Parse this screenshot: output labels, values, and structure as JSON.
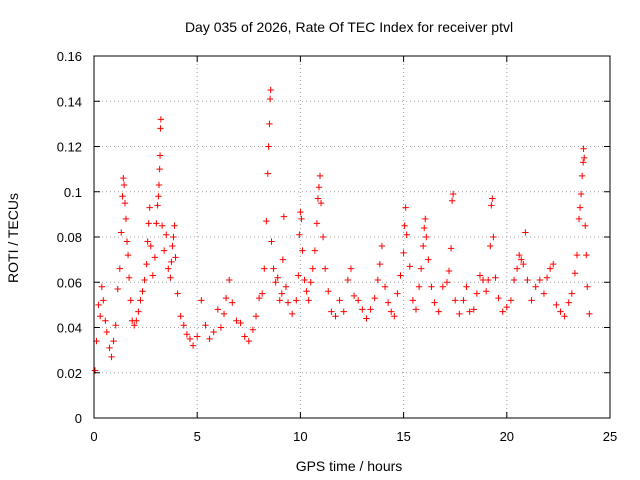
{
  "chart_data": {
    "type": "scatter",
    "title": "Day 035 of 2026, Rate Of TEC Index for receiver ptvl",
    "xlabel": "GPS time / hours",
    "ylabel": "ROTI / TECUs",
    "xlim": [
      0,
      25
    ],
    "ylim": [
      0,
      0.16
    ],
    "xticks": [
      "0",
      "5",
      "10",
      "15",
      "20",
      "25"
    ],
    "yticks": [
      "0",
      "0.02",
      "0.04",
      "0.06",
      "0.08",
      "0.1",
      "0.12",
      "0.14",
      "0.16"
    ],
    "grid": true,
    "marker": "+",
    "color": "#ff0000",
    "series": [
      {
        "name": "ROTI",
        "points": [
          [
            0.05,
            0.021
          ],
          [
            0.12,
            0.034
          ],
          [
            0.22,
            0.05
          ],
          [
            0.3,
            0.045
          ],
          [
            0.38,
            0.058
          ],
          [
            0.45,
            0.052
          ],
          [
            0.55,
            0.043
          ],
          [
            0.62,
            0.038
          ],
          [
            0.75,
            0.031
          ],
          [
            0.85,
            0.027
          ],
          [
            0.95,
            0.034
          ],
          [
            1.05,
            0.041
          ],
          [
            1.15,
            0.057
          ],
          [
            1.25,
            0.066
          ],
          [
            1.32,
            0.082
          ],
          [
            1.38,
            0.098
          ],
          [
            1.42,
            0.106
          ],
          [
            1.46,
            0.103
          ],
          [
            1.5,
            0.095
          ],
          [
            1.55,
            0.088
          ],
          [
            1.6,
            0.078
          ],
          [
            1.65,
            0.072
          ],
          [
            1.7,
            0.062
          ],
          [
            1.78,
            0.052
          ],
          [
            1.85,
            0.043
          ],
          [
            1.95,
            0.041
          ],
          [
            2.05,
            0.043
          ],
          [
            2.15,
            0.047
          ],
          [
            2.25,
            0.052
          ],
          [
            2.35,
            0.056
          ],
          [
            2.45,
            0.061
          ],
          [
            2.55,
            0.068
          ],
          [
            2.6,
            0.078
          ],
          [
            2.65,
            0.086
          ],
          [
            2.7,
            0.093
          ],
          [
            2.75,
            0.076
          ],
          [
            2.85,
            0.063
          ],
          [
            2.95,
            0.071
          ],
          [
            3.02,
            0.086
          ],
          [
            3.08,
            0.094
          ],
          [
            3.12,
            0.098
          ],
          [
            3.15,
            0.103
          ],
          [
            3.18,
            0.11
          ],
          [
            3.2,
            0.116
          ],
          [
            3.22,
            0.128
          ],
          [
            3.24,
            0.132
          ],
          [
            3.3,
            0.085
          ],
          [
            3.4,
            0.074
          ],
          [
            3.5,
            0.081
          ],
          [
            3.6,
            0.066
          ],
          [
            3.7,
            0.062
          ],
          [
            3.75,
            0.069
          ],
          [
            3.8,
            0.076
          ],
          [
            3.85,
            0.08
          ],
          [
            3.9,
            0.085
          ],
          [
            3.95,
            0.071
          ],
          [
            4.05,
            0.055
          ],
          [
            4.2,
            0.045
          ],
          [
            4.35,
            0.041
          ],
          [
            4.5,
            0.037
          ],
          [
            4.65,
            0.035
          ],
          [
            4.8,
            0.032
          ],
          [
            5.0,
            0.036
          ],
          [
            5.2,
            0.052
          ],
          [
            5.4,
            0.041
          ],
          [
            5.6,
            0.035
          ],
          [
            5.8,
            0.038
          ],
          [
            6.0,
            0.048
          ],
          [
            6.15,
            0.04
          ],
          [
            6.3,
            0.046
          ],
          [
            6.4,
            0.053
          ],
          [
            6.55,
            0.061
          ],
          [
            6.7,
            0.051
          ],
          [
            6.9,
            0.043
          ],
          [
            7.1,
            0.042
          ],
          [
            7.3,
            0.036
          ],
          [
            7.5,
            0.034
          ],
          [
            7.7,
            0.039
          ],
          [
            7.85,
            0.045
          ],
          [
            8.0,
            0.053
          ],
          [
            8.15,
            0.055
          ],
          [
            8.25,
            0.066
          ],
          [
            8.35,
            0.087
          ],
          [
            8.42,
            0.108
          ],
          [
            8.46,
            0.12
          ],
          [
            8.5,
            0.13
          ],
          [
            8.53,
            0.141
          ],
          [
            8.56,
            0.145
          ],
          [
            8.6,
            0.078
          ],
          [
            8.7,
            0.066
          ],
          [
            8.8,
            0.06
          ],
          [
            8.9,
            0.062
          ],
          [
            9.0,
            0.052
          ],
          [
            9.1,
            0.055
          ],
          [
            9.15,
            0.07
          ],
          [
            9.2,
            0.089
          ],
          [
            9.3,
            0.058
          ],
          [
            9.4,
            0.051
          ],
          [
            9.6,
            0.046
          ],
          [
            9.8,
            0.052
          ],
          [
            9.9,
            0.063
          ],
          [
            9.95,
            0.081
          ],
          [
            10.0,
            0.091
          ],
          [
            10.05,
            0.088
          ],
          [
            10.1,
            0.074
          ],
          [
            10.2,
            0.061
          ],
          [
            10.3,
            0.056
          ],
          [
            10.4,
            0.052
          ],
          [
            10.5,
            0.06
          ],
          [
            10.6,
            0.066
          ],
          [
            10.7,
            0.074
          ],
          [
            10.8,
            0.086
          ],
          [
            10.85,
            0.097
          ],
          [
            10.9,
            0.102
          ],
          [
            10.95,
            0.107
          ],
          [
            11.0,
            0.095
          ],
          [
            11.1,
            0.08
          ],
          [
            11.2,
            0.066
          ],
          [
            11.35,
            0.056
          ],
          [
            11.5,
            0.047
          ],
          [
            11.7,
            0.045
          ],
          [
            11.9,
            0.052
          ],
          [
            12.1,
            0.047
          ],
          [
            12.3,
            0.061
          ],
          [
            12.45,
            0.066
          ],
          [
            12.6,
            0.054
          ],
          [
            12.8,
            0.052
          ],
          [
            13.0,
            0.048
          ],
          [
            13.2,
            0.044
          ],
          [
            13.4,
            0.048
          ],
          [
            13.6,
            0.053
          ],
          [
            13.75,
            0.061
          ],
          [
            13.85,
            0.068
          ],
          [
            13.95,
            0.076
          ],
          [
            14.1,
            0.058
          ],
          [
            14.25,
            0.051
          ],
          [
            14.4,
            0.047
          ],
          [
            14.55,
            0.045
          ],
          [
            14.7,
            0.055
          ],
          [
            14.85,
            0.063
          ],
          [
            15.0,
            0.073
          ],
          [
            15.05,
            0.085
          ],
          [
            15.1,
            0.093
          ],
          [
            15.15,
            0.081
          ],
          [
            15.3,
            0.067
          ],
          [
            15.45,
            0.052
          ],
          [
            15.6,
            0.048
          ],
          [
            15.75,
            0.058
          ],
          [
            15.85,
            0.066
          ],
          [
            15.95,
            0.076
          ],
          [
            16.0,
            0.084
          ],
          [
            16.05,
            0.088
          ],
          [
            16.1,
            0.08
          ],
          [
            16.2,
            0.07
          ],
          [
            16.35,
            0.058
          ],
          [
            16.5,
            0.051
          ],
          [
            16.7,
            0.047
          ],
          [
            16.9,
            0.058
          ],
          [
            17.1,
            0.06
          ],
          [
            17.2,
            0.065
          ],
          [
            17.3,
            0.075
          ],
          [
            17.35,
            0.096
          ],
          [
            17.4,
            0.099
          ],
          [
            17.5,
            0.052
          ],
          [
            17.7,
            0.046
          ],
          [
            17.9,
            0.052
          ],
          [
            18.05,
            0.058
          ],
          [
            18.2,
            0.047
          ],
          [
            18.4,
            0.048
          ],
          [
            18.55,
            0.055
          ],
          [
            18.7,
            0.063
          ],
          [
            18.85,
            0.061
          ],
          [
            19.0,
            0.056
          ],
          [
            19.1,
            0.061
          ],
          [
            19.2,
            0.076
          ],
          [
            19.25,
            0.094
          ],
          [
            19.3,
            0.097
          ],
          [
            19.35,
            0.08
          ],
          [
            19.45,
            0.062
          ],
          [
            19.6,
            0.053
          ],
          [
            19.8,
            0.047
          ],
          [
            20.0,
            0.049
          ],
          [
            20.2,
            0.052
          ],
          [
            20.35,
            0.061
          ],
          [
            20.5,
            0.066
          ],
          [
            20.6,
            0.072
          ],
          [
            20.7,
            0.07
          ],
          [
            20.8,
            0.068
          ],
          [
            20.9,
            0.082
          ],
          [
            21.0,
            0.061
          ],
          [
            21.2,
            0.052
          ],
          [
            21.4,
            0.058
          ],
          [
            21.6,
            0.061
          ],
          [
            21.8,
            0.055
          ],
          [
            21.95,
            0.062
          ],
          [
            22.1,
            0.066
          ],
          [
            22.25,
            0.068
          ],
          [
            22.4,
            0.05
          ],
          [
            22.6,
            0.047
          ],
          [
            22.8,
            0.045
          ],
          [
            23.0,
            0.051
          ],
          [
            23.15,
            0.055
          ],
          [
            23.3,
            0.064
          ],
          [
            23.4,
            0.072
          ],
          [
            23.5,
            0.088
          ],
          [
            23.55,
            0.093
          ],
          [
            23.6,
            0.099
          ],
          [
            23.65,
            0.107
          ],
          [
            23.7,
            0.113
          ],
          [
            23.72,
            0.119
          ],
          [
            23.75,
            0.115
          ],
          [
            23.8,
            0.085
          ],
          [
            23.85,
            0.072
          ],
          [
            23.9,
            0.058
          ],
          [
            24.0,
            0.046
          ]
        ]
      }
    ]
  }
}
